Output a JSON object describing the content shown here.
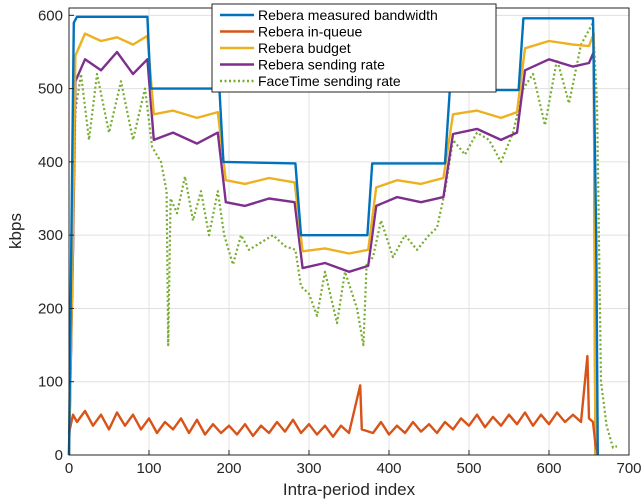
{
  "chart_data": {
    "type": "line",
    "xlabel": "Intra-period index",
    "ylabel": "kbps",
    "xlim": [
      0,
      700
    ],
    "ylim": [
      0,
      610
    ],
    "xticks": [
      0,
      100,
      200,
      300,
      400,
      500,
      600,
      700
    ],
    "yticks": [
      0,
      100,
      200,
      300,
      400,
      500,
      600
    ],
    "grid": true,
    "legend_position": "top-center",
    "series": [
      {
        "name": "Rebera measured bandwidth",
        "color": "#0072BD",
        "style": "solid",
        "points": [
          [
            0,
            0
          ],
          [
            3,
            300
          ],
          [
            6,
            590
          ],
          [
            10,
            598
          ],
          [
            98,
            598
          ],
          [
            102,
            500
          ],
          [
            188,
            500
          ],
          [
            193,
            400
          ],
          [
            283,
            398
          ],
          [
            290,
            300
          ],
          [
            373,
            300
          ],
          [
            379,
            398
          ],
          [
            470,
            398
          ],
          [
            476,
            498
          ],
          [
            562,
            498
          ],
          [
            568,
            596
          ],
          [
            655,
            596
          ],
          [
            659,
            300
          ],
          [
            661,
            0
          ]
        ]
      },
      {
        "name": "Rebera in-queue",
        "color": "#D95319",
        "style": "solid",
        "points": [
          [
            0,
            30
          ],
          [
            5,
            55
          ],
          [
            10,
            45
          ],
          [
            20,
            60
          ],
          [
            30,
            40
          ],
          [
            40,
            55
          ],
          [
            50,
            35
          ],
          [
            60,
            58
          ],
          [
            70,
            40
          ],
          [
            80,
            55
          ],
          [
            90,
            35
          ],
          [
            100,
            50
          ],
          [
            110,
            30
          ],
          [
            120,
            45
          ],
          [
            130,
            35
          ],
          [
            140,
            50
          ],
          [
            150,
            30
          ],
          [
            160,
            48
          ],
          [
            170,
            28
          ],
          [
            180,
            42
          ],
          [
            190,
            30
          ],
          [
            200,
            40
          ],
          [
            210,
            28
          ],
          [
            220,
            42
          ],
          [
            230,
            26
          ],
          [
            240,
            40
          ],
          [
            250,
            30
          ],
          [
            260,
            45
          ],
          [
            270,
            32
          ],
          [
            280,
            48
          ],
          [
            290,
            30
          ],
          [
            300,
            42
          ],
          [
            310,
            28
          ],
          [
            320,
            40
          ],
          [
            330,
            25
          ],
          [
            340,
            40
          ],
          [
            350,
            30
          ],
          [
            364,
            95
          ],
          [
            366,
            35
          ],
          [
            380,
            30
          ],
          [
            390,
            45
          ],
          [
            400,
            28
          ],
          [
            410,
            40
          ],
          [
            420,
            30
          ],
          [
            430,
            45
          ],
          [
            440,
            32
          ],
          [
            450,
            42
          ],
          [
            460,
            30
          ],
          [
            470,
            45
          ],
          [
            480,
            35
          ],
          [
            490,
            50
          ],
          [
            500,
            40
          ],
          [
            510,
            55
          ],
          [
            520,
            38
          ],
          [
            530,
            52
          ],
          [
            540,
            40
          ],
          [
            550,
            55
          ],
          [
            560,
            42
          ],
          [
            570,
            58
          ],
          [
            580,
            40
          ],
          [
            590,
            55
          ],
          [
            600,
            42
          ],
          [
            610,
            58
          ],
          [
            620,
            45
          ],
          [
            630,
            55
          ],
          [
            640,
            45
          ],
          [
            648,
            135
          ],
          [
            650,
            50
          ],
          [
            655,
            45
          ],
          [
            658,
            15
          ],
          [
            661,
            0
          ]
        ]
      },
      {
        "name": "Rebera budget",
        "color": "#EDB120",
        "style": "solid",
        "points": [
          [
            0,
            0
          ],
          [
            5,
            300
          ],
          [
            8,
            545
          ],
          [
            20,
            575
          ],
          [
            40,
            565
          ],
          [
            60,
            570
          ],
          [
            80,
            560
          ],
          [
            98,
            572
          ],
          [
            106,
            465
          ],
          [
            130,
            470
          ],
          [
            160,
            460
          ],
          [
            186,
            468
          ],
          [
            196,
            375
          ],
          [
            220,
            370
          ],
          [
            250,
            378
          ],
          [
            282,
            372
          ],
          [
            292,
            278
          ],
          [
            320,
            282
          ],
          [
            350,
            275
          ],
          [
            374,
            280
          ],
          [
            384,
            365
          ],
          [
            410,
            375
          ],
          [
            440,
            370
          ],
          [
            468,
            378
          ],
          [
            480,
            465
          ],
          [
            510,
            470
          ],
          [
            540,
            460
          ],
          [
            560,
            468
          ],
          [
            570,
            555
          ],
          [
            600,
            565
          ],
          [
            630,
            560
          ],
          [
            650,
            558
          ],
          [
            656,
            575
          ],
          [
            658,
            0
          ]
        ]
      },
      {
        "name": "Rebera sending rate",
        "color": "#7E2F8E",
        "style": "solid",
        "points": [
          [
            0,
            0
          ],
          [
            5,
            280
          ],
          [
            8,
            510
          ],
          [
            20,
            540
          ],
          [
            40,
            525
          ],
          [
            60,
            550
          ],
          [
            80,
            520
          ],
          [
            98,
            540
          ],
          [
            106,
            430
          ],
          [
            130,
            440
          ],
          [
            160,
            425
          ],
          [
            186,
            440
          ],
          [
            196,
            345
          ],
          [
            220,
            340
          ],
          [
            250,
            350
          ],
          [
            282,
            345
          ],
          [
            292,
            255
          ],
          [
            320,
            262
          ],
          [
            350,
            250
          ],
          [
            374,
            258
          ],
          [
            384,
            340
          ],
          [
            410,
            352
          ],
          [
            440,
            345
          ],
          [
            468,
            352
          ],
          [
            480,
            438
          ],
          [
            510,
            445
          ],
          [
            540,
            430
          ],
          [
            560,
            440
          ],
          [
            570,
            525
          ],
          [
            600,
            540
          ],
          [
            630,
            530
          ],
          [
            650,
            535
          ],
          [
            656,
            550
          ],
          [
            658,
            0
          ]
        ]
      },
      {
        "name": "FaceTime sending rate",
        "color": "#77AC30",
        "style": "dotted",
        "points": [
          [
            0,
            0
          ],
          [
            4,
            220
          ],
          [
            8,
            470
          ],
          [
            15,
            520
          ],
          [
            25,
            430
          ],
          [
            35,
            520
          ],
          [
            50,
            440
          ],
          [
            65,
            510
          ],
          [
            80,
            430
          ],
          [
            95,
            500
          ],
          [
            104,
            420
          ],
          [
            115,
            400
          ],
          [
            122,
            360
          ],
          [
            124,
            150
          ],
          [
            127,
            350
          ],
          [
            135,
            330
          ],
          [
            145,
            380
          ],
          [
            155,
            320
          ],
          [
            165,
            360
          ],
          [
            175,
            300
          ],
          [
            186,
            360
          ],
          [
            194,
            300
          ],
          [
            205,
            260
          ],
          [
            215,
            300
          ],
          [
            225,
            280
          ],
          [
            240,
            290
          ],
          [
            255,
            300
          ],
          [
            270,
            285
          ],
          [
            283,
            280
          ],
          [
            290,
            230
          ],
          [
            300,
            220
          ],
          [
            310,
            190
          ],
          [
            320,
            250
          ],
          [
            335,
            180
          ],
          [
            345,
            250
          ],
          [
            360,
            200
          ],
          [
            368,
            150
          ],
          [
            372,
            260
          ],
          [
            380,
            270
          ],
          [
            390,
            320
          ],
          [
            405,
            270
          ],
          [
            420,
            300
          ],
          [
            435,
            280
          ],
          [
            450,
            300
          ],
          [
            460,
            310
          ],
          [
            470,
            360
          ],
          [
            480,
            430
          ],
          [
            495,
            410
          ],
          [
            510,
            440
          ],
          [
            525,
            430
          ],
          [
            540,
            400
          ],
          [
            555,
            440
          ],
          [
            568,
            500
          ],
          [
            580,
            520
          ],
          [
            595,
            450
          ],
          [
            610,
            540
          ],
          [
            625,
            480
          ],
          [
            640,
            560
          ],
          [
            655,
            590
          ],
          [
            660,
            480
          ],
          [
            665,
            100
          ],
          [
            672,
            40
          ],
          [
            680,
            10
          ],
          [
            685,
            12
          ]
        ]
      }
    ]
  }
}
